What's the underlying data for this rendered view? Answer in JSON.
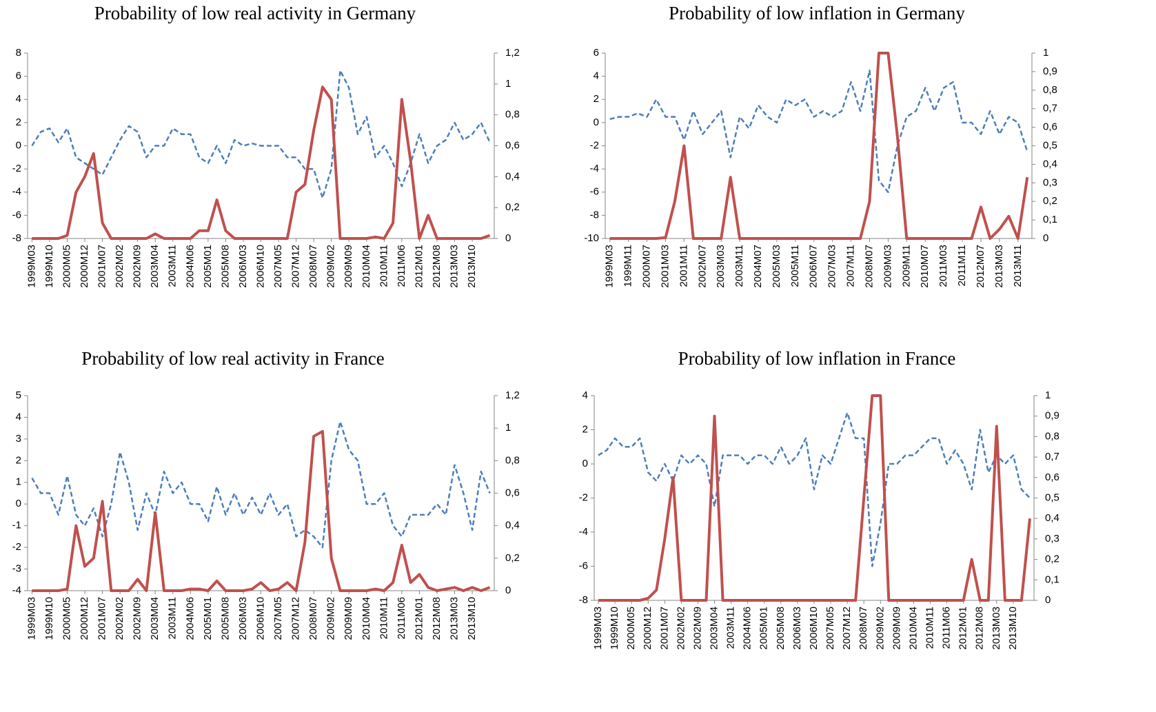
{
  "chart_data": [
    {
      "type": "line",
      "title": "Probability of low real activity in Germany",
      "categories": [
        "1999M03",
        null,
        "1999M10",
        null,
        "2000M05",
        null,
        "2000M12",
        null,
        "2001M07",
        null,
        "2002M02",
        null,
        "2002M09",
        null,
        "2003M04",
        null,
        "2003M11",
        null,
        "2004M06",
        null,
        "2005M01",
        null,
        "2005M08",
        null,
        "2006M03",
        null,
        "2006M10",
        null,
        "2007M05",
        null,
        "2007M12",
        null,
        "2008M07",
        null,
        "2009M02",
        null,
        "2009M09",
        null,
        "2010M04",
        null,
        "2010M11",
        null,
        "2011M06",
        null,
        "2012M01",
        null,
        "2012M08",
        null,
        "2013M03",
        null,
        "2013M10",
        null,
        null
      ],
      "ylim": [
        -8,
        8
      ],
      "yticks": [
        -8,
        -6,
        -4,
        -2,
        0,
        2,
        4,
        6,
        8
      ],
      "y2lim": [
        0,
        1.2
      ],
      "y2ticks": [
        0,
        {
          "value": 0.2,
          "label": "0,2"
        },
        {
          "value": 0.4,
          "label": "0,4"
        },
        {
          "value": 0.6,
          "label": "0,6"
        },
        {
          "value": 0.8,
          "label": "0,8"
        },
        1,
        {
          "value": 1.2,
          "label": "1,2"
        }
      ],
      "series": [
        {
          "color": "#4a7ebb",
          "line_style": "dashed",
          "values": [
            0,
            1.2,
            1.5,
            0.3,
            1.5,
            -1,
            -1.5,
            -2,
            -2.5,
            -1,
            0.5,
            1.7,
            1.2,
            -1,
            0,
            0,
            1.5,
            1,
            1,
            -1,
            -1.5,
            0,
            -1.5,
            0.5,
            0,
            0.2,
            0,
            0,
            0,
            -1,
            -1,
            -2,
            -2,
            -4.5,
            -2,
            6.5,
            5,
            1,
            2.5,
            -1,
            0,
            -1.5,
            -3.5,
            -1.5,
            1,
            -1.5,
            0,
            0.5,
            2,
            0.5,
            1,
            2,
            0.3
          ]
        },
        {
          "color": "#c0504d",
          "line_style": "solid",
          "axis": "y2",
          "values": [
            0,
            0,
            0,
            0,
            0.02,
            0.3,
            0.4,
            0.55,
            0.1,
            0,
            0,
            0,
            0,
            0,
            0.03,
            0,
            0,
            0,
            0,
            0.05,
            0.05,
            0.25,
            0.05,
            0,
            0,
            0,
            0,
            0,
            0,
            0,
            0.3,
            0.35,
            0.7,
            0.98,
            0.9,
            0,
            0,
            0,
            0,
            0.01,
            0,
            0.1,
            0.9,
            0.5,
            0,
            0.15,
            0,
            0,
            0,
            0,
            0,
            0,
            0.02
          ]
        }
      ]
    },
    {
      "type": "line",
      "title": "Probability of low inflation in Germany",
      "categories": [
        "1999M03",
        null,
        "1999M11",
        null,
        "2000M07",
        null,
        "2001M03",
        null,
        "2001M11",
        null,
        "2002M07",
        null,
        "2003M03",
        null,
        "2003M11",
        null,
        "2004M07",
        null,
        "2005M03",
        null,
        "2005M11",
        null,
        "2006M07",
        null,
        "2007M03",
        null,
        "2007M11",
        null,
        "2008M07",
        null,
        "2009M03",
        null,
        "2009M11",
        null,
        "2010M07",
        null,
        "2011M03",
        null,
        "2011M11",
        null,
        "2012M07",
        null,
        "2013M03",
        null,
        "2013M11",
        null
      ],
      "ylim": [
        -10,
        6
      ],
      "yticks": [
        -10,
        -8,
        -6,
        -4,
        -2,
        0,
        2,
        4,
        6
      ],
      "y2lim": [
        0,
        1
      ],
      "y2ticks": [
        0,
        {
          "value": 0.1,
          "label": "0,1"
        },
        {
          "value": 0.2,
          "label": "0,2"
        },
        {
          "value": 0.3,
          "label": "0,3"
        },
        {
          "value": 0.4,
          "label": "0,4"
        },
        {
          "value": 0.5,
          "label": "0,5"
        },
        {
          "value": 0.6,
          "label": "0,6"
        },
        {
          "value": 0.7,
          "label": "0,7"
        },
        {
          "value": 0.8,
          "label": "0,8"
        },
        {
          "value": 0.9,
          "label": "0,9"
        },
        1
      ],
      "series": [
        {
          "color": "#4a7ebb",
          "line_style": "dashed",
          "values": [
            0.3,
            0.5,
            0.5,
            0.8,
            0.5,
            2,
            0.5,
            0.5,
            -1.5,
            1,
            -1,
            0,
            1,
            -3,
            0.5,
            -0.5,
            1.5,
            0.5,
            0,
            2,
            1.5,
            2,
            0.5,
            1,
            0.5,
            1,
            3.5,
            1,
            4.5,
            -5,
            -6,
            -2,
            0.5,
            1,
            3,
            1,
            3,
            3.5,
            0,
            0,
            -1,
            1,
            -1,
            0.5,
            0,
            -2.5
          ]
        },
        {
          "color": "#c0504d",
          "line_style": "solid",
          "axis": "y2",
          "values": [
            0,
            0,
            0,
            0,
            0,
            0,
            0.005,
            0.2,
            0.5,
            0,
            0,
            0,
            0,
            0.33,
            0,
            0,
            0,
            0,
            0,
            0,
            0,
            0,
            0,
            0,
            0,
            0,
            0,
            0,
            0.2,
            1,
            1,
            0.55,
            0,
            0,
            0,
            0,
            0,
            0,
            0,
            0,
            0.17,
            0,
            0.05,
            0.12,
            0,
            0.33
          ]
        }
      ]
    },
    {
      "type": "line",
      "title": "Probability of low real activity in France",
      "categories": [
        "1999M03",
        null,
        "1999M10",
        null,
        "2000M05",
        null,
        "2000M12",
        null,
        "2001M07",
        null,
        "2002M02",
        null,
        "2002M09",
        null,
        "2003M04",
        null,
        "2003M11",
        null,
        "2004M06",
        null,
        "2005M01",
        null,
        "2005M08",
        null,
        "2006M03",
        null,
        "2006M10",
        null,
        "2007M05",
        null,
        "2007M12",
        null,
        "2008M07",
        null,
        "2009M02",
        null,
        "2009M09",
        null,
        "2010M04",
        null,
        "2010M11",
        null,
        "2011M06",
        null,
        "2012M01",
        null,
        "2012M08",
        null,
        "2013M03",
        null,
        "2013M10",
        null,
        null
      ],
      "ylim": [
        -4,
        5
      ],
      "yticks": [
        -4,
        -3,
        -2,
        -1,
        0,
        1,
        2,
        3,
        4,
        5
      ],
      "y2lim": [
        0,
        1.2
      ],
      "y2ticks": [
        0,
        {
          "value": 0.2,
          "label": "0,2"
        },
        {
          "value": 0.4,
          "label": "0,4"
        },
        {
          "value": 0.6,
          "label": "0,6"
        },
        {
          "value": 0.8,
          "label": "0,8"
        },
        1,
        {
          "value": 1.2,
          "label": "1,2"
        }
      ],
      "series": [
        {
          "color": "#4a7ebb",
          "line_style": "dashed",
          "values": [
            1.2,
            0.5,
            0.5,
            -0.5,
            1.3,
            -0.5,
            -1,
            -0.2,
            -1.5,
            0,
            2.4,
            1,
            -1.2,
            0.5,
            -0.5,
            1.5,
            0.5,
            1,
            0,
            0,
            -0.8,
            0.8,
            -0.5,
            0.5,
            -0.5,
            0.3,
            -0.5,
            0.5,
            -0.5,
            0,
            -1.5,
            -1.2,
            -1.5,
            -2,
            2,
            3.8,
            2.5,
            2,
            0,
            0,
            0.5,
            -1,
            -1.5,
            -0.5,
            -0.5,
            -0.5,
            0,
            -0.5,
            1.8,
            0.5,
            -1.2,
            1.5,
            0.5
          ]
        },
        {
          "color": "#c0504d",
          "line_style": "solid",
          "axis": "y2",
          "values": [
            0,
            0,
            0,
            0,
            0.01,
            0.4,
            0.15,
            0.2,
            0.55,
            0,
            0,
            0,
            0.07,
            0,
            0.48,
            0,
            0,
            0,
            0.01,
            0.01,
            0,
            0.06,
            0,
            0,
            0,
            0.01,
            0.05,
            0,
            0.01,
            0.05,
            0,
            0.3,
            0.95,
            0.98,
            0.2,
            0,
            0,
            0,
            0,
            0.01,
            0,
            0.05,
            0.28,
            0.05,
            0.1,
            0.02,
            0,
            0.01,
            0.02,
            0,
            0.02,
            0,
            0.02
          ]
        }
      ]
    },
    {
      "type": "line",
      "title": "Probability of low inflation in France",
      "categories": [
        "1999M03",
        null,
        "1999M10",
        null,
        "2000M05",
        null,
        "2000M12",
        null,
        "2001M07",
        null,
        "2002M02",
        null,
        "2002M09",
        null,
        "2003M04",
        null,
        "2003M11",
        null,
        "2004M06",
        null,
        "2005M01",
        null,
        "2005M08",
        null,
        "2006M03",
        null,
        "2006M10",
        null,
        "2007M05",
        null,
        "2007M12",
        null,
        "2008M07",
        null,
        "2009M02",
        null,
        "2009M09",
        null,
        "2010M04",
        null,
        "2010M11",
        null,
        "2011M06",
        null,
        "2012M01",
        null,
        "2012M08",
        null,
        "2013M03",
        null,
        "2013M10",
        null,
        null
      ],
      "ylim": [
        -8,
        4
      ],
      "yticks": [
        -8,
        -6,
        -4,
        -2,
        0,
        2,
        4
      ],
      "y2lim": [
        0,
        1
      ],
      "y2ticks": [
        0,
        {
          "value": 0.1,
          "label": "0,1"
        },
        {
          "value": 0.2,
          "label": "0,2"
        },
        {
          "value": 0.3,
          "label": "0,3"
        },
        {
          "value": 0.4,
          "label": "0,4"
        },
        {
          "value": 0.5,
          "label": "0,5"
        },
        {
          "value": 0.6,
          "label": "0,6"
        },
        {
          "value": 0.7,
          "label": "0,7"
        },
        {
          "value": 0.8,
          "label": "0,8"
        },
        {
          "value": 0.9,
          "label": "0,9"
        },
        1
      ],
      "series": [
        {
          "color": "#4a7ebb",
          "line_style": "dashed",
          "values": [
            0.5,
            0.8,
            1.5,
            1,
            1,
            1.5,
            -0.5,
            -1,
            0,
            -1,
            0.5,
            0,
            0.5,
            0,
            -2.5,
            0.5,
            0.5,
            0.5,
            0,
            0.5,
            0.5,
            0,
            1,
            0,
            0.5,
            1.5,
            -1.5,
            0.5,
            0,
            1.5,
            3,
            1.5,
            1.5,
            -6,
            -3.5,
            0,
            0,
            0.5,
            0.5,
            1,
            1.5,
            1.5,
            0,
            0.8,
            0,
            -1.5,
            2,
            -0.5,
            0.5,
            0,
            0.5,
            -1.5,
            -2
          ]
        },
        {
          "color": "#c0504d",
          "line_style": "solid",
          "axis": "y2",
          "values": [
            0,
            0,
            0,
            0,
            0,
            0,
            0.01,
            0.05,
            0.3,
            0.6,
            0,
            0,
            0,
            0,
            0.9,
            0,
            0,
            0,
            0,
            0,
            0,
            0,
            0,
            0,
            0,
            0,
            0,
            0,
            0,
            0,
            0,
            0,
            0.5,
            1,
            1,
            0,
            0,
            0,
            0,
            0,
            0,
            0,
            0,
            0,
            0,
            0.2,
            0,
            0,
            0.85,
            0,
            0,
            0,
            0.4
          ]
        }
      ]
    }
  ]
}
